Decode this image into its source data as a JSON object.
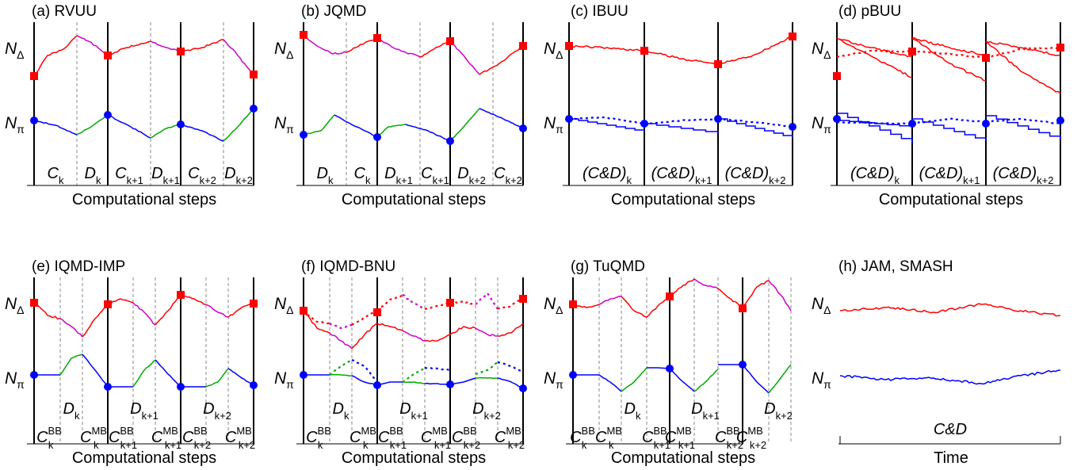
{
  "colors": {
    "delta": "#ff0000",
    "pi": "#0000ff",
    "collision": "#00aa00",
    "decay": "#cc00cc",
    "axis": "#000000",
    "grid": "#888888"
  },
  "common": {
    "x_label": "Computational steps"
  },
  "panels": [
    {
      "id": "a",
      "title": "(a) RVUU",
      "x_label": "Computational steps",
      "y_labels": [
        "N",
        "Δ",
        "N",
        "π"
      ],
      "steps": [
        [
          "C",
          "k"
        ],
        [
          "D",
          "k"
        ],
        [
          "C",
          "k+1"
        ],
        [
          "D",
          "k+1"
        ],
        [
          "C",
          "k+2"
        ],
        [
          "D",
          "k+2"
        ]
      ]
    },
    {
      "id": "b",
      "title": "(b) JQMD",
      "x_label": "Computational steps",
      "y_labels": [
        "N",
        "Δ",
        "N",
        "π"
      ],
      "steps": [
        [
          "D",
          "k"
        ],
        [
          "C",
          "k"
        ],
        [
          "D",
          "k+1"
        ],
        [
          "C",
          "k+1"
        ],
        [
          "D",
          "k+2"
        ],
        [
          "C",
          "k+2"
        ]
      ]
    },
    {
      "id": "c",
      "title": "(c) IBUU",
      "x_label": "Computational steps",
      "y_labels": [
        "N",
        "Δ",
        "N",
        "π"
      ],
      "steps": [
        [
          "(C&D)",
          "k"
        ],
        [
          "(C&D)",
          "k+1"
        ],
        [
          "(C&D)",
          "k+2"
        ]
      ]
    },
    {
      "id": "d",
      "title": "(d) pBUU",
      "x_label": "Computational steps",
      "y_labels": [
        "N",
        "Δ",
        "N",
        "π"
      ],
      "steps": [
        [
          "(C&D)",
          "k"
        ],
        [
          "(C&D)",
          "k+1"
        ],
        [
          "(C&D)",
          "k+2"
        ]
      ]
    },
    {
      "id": "e",
      "title": "(e) IQMD-IMP",
      "x_label": "Computational steps",
      "y_labels": [
        "N",
        "Δ",
        "N",
        "π"
      ],
      "steps": [
        [
          "C",
          "k",
          "BB"
        ],
        [
          "C",
          "k",
          "MB"
        ],
        [
          "C",
          "k+1",
          "BB"
        ],
        [
          "C",
          "k+1",
          "MB"
        ],
        [
          "C",
          "k+2",
          "BB"
        ],
        [
          "C",
          "k+2",
          "MB"
        ]
      ],
      "decays": [
        [
          "D",
          "k"
        ],
        [
          "D",
          "k+1"
        ],
        [
          "D",
          "k+2"
        ]
      ]
    },
    {
      "id": "f",
      "title": "(f) IQMD-BNU",
      "x_label": "Computational steps",
      "y_labels": [
        "N",
        "Δ",
        "N",
        "π"
      ],
      "steps": [
        [
          "C",
          "k",
          "BB"
        ],
        [
          "C",
          "k",
          "MB"
        ],
        [
          "C",
          "k+1",
          "BB"
        ],
        [
          "C",
          "k+1",
          "MB"
        ],
        [
          "C",
          "k+2",
          "BB"
        ],
        [
          "C",
          "k+2",
          "MB"
        ]
      ],
      "decays": [
        [
          "D",
          "k"
        ],
        [
          "D",
          "k+1"
        ],
        [
          "D",
          "k+2"
        ]
      ]
    },
    {
      "id": "g",
      "title": "(g) TuQMD",
      "x_label": "Computational steps",
      "y_labels": [
        "N",
        "Δ",
        "N",
        "π"
      ],
      "steps": [
        [
          "C",
          "k",
          "BB"
        ],
        [
          "C",
          "k",
          "MB"
        ],
        [
          "C",
          "k+1",
          "BB"
        ],
        [
          "C",
          "k+1",
          "MB"
        ],
        [
          "C",
          "k+2",
          "BB"
        ],
        [
          "C",
          "k+2",
          "MB"
        ]
      ],
      "decays": [
        [
          "D",
          "k"
        ],
        [
          "D",
          "k+1"
        ],
        [
          "D",
          "k+2"
        ]
      ]
    },
    {
      "id": "h",
      "title": "(h) JAM, SMASH",
      "x_label": "Time",
      "y_labels": [
        "N",
        "Δ",
        "N",
        "π"
      ],
      "center_label": "C&D"
    }
  ]
}
